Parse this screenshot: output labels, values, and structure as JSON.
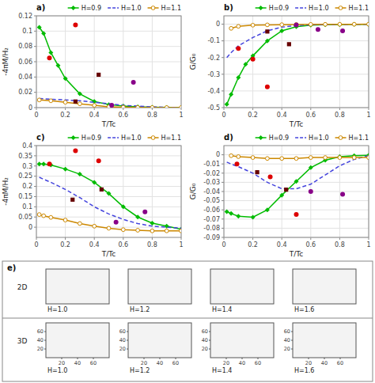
{
  "chart_data": [
    {
      "type": "line",
      "title": "a)",
      "xlabel": "T/Tc",
      "ylabel": "-4πM/H₂",
      "xlim": [
        0,
        1
      ],
      "ylim": [
        0,
        0.12
      ],
      "xticks": [
        0,
        0.2,
        0.4,
        0.6,
        0.8,
        1.0
      ],
      "yticks": [
        0,
        0.02,
        0.04,
        0.06,
        0.08,
        0.1,
        0.12
      ],
      "grid": true,
      "legend": "upper right",
      "series": [
        {
          "name": "H=0.9",
          "type": "line",
          "color": "#00bb00",
          "line_style": "solid",
          "marker": "diamond",
          "x": [
            0.02,
            0.05,
            0.1,
            0.15,
            0.2,
            0.3,
            0.4,
            0.5,
            0.6,
            0.7,
            0.8,
            0.9,
            1.0
          ],
          "values": [
            0.105,
            0.097,
            0.072,
            0.055,
            0.038,
            0.018,
            0.008,
            0.004,
            0.002,
            0.001,
            0.0005,
            0.0002,
            0.0001
          ]
        },
        {
          "name": "H=1.0",
          "type": "line",
          "color": "#4444dd",
          "line_style": "dashed",
          "marker": "none",
          "x": [
            0.02,
            0.1,
            0.2,
            0.3,
            0.4,
            0.5,
            0.6,
            0.7,
            0.8,
            0.9,
            1.0
          ],
          "values": [
            0.012,
            0.011,
            0.01,
            0.009,
            0.007,
            0.005,
            0.003,
            0.002,
            0.001,
            0.0005,
            0.0001
          ]
        },
        {
          "name": "H=1.1",
          "type": "line",
          "color": "#cc8800",
          "line_style": "solid",
          "marker": "circle_open",
          "x": [
            0.02,
            0.1,
            0.2,
            0.3,
            0.4,
            0.5,
            0.6,
            0.7,
            0.8,
            0.9,
            1.0
          ],
          "values": [
            0.01,
            0.009,
            0.007,
            0.005,
            0.003,
            0.001,
            0.0005,
            0.0002,
            0.0001,
            5e-05,
            1e-05
          ]
        },
        {
          "type": "scatter",
          "color": "#dd0000",
          "marker": "circle",
          "x": [
            0.09,
            0.27
          ],
          "values": [
            0.065,
            0.108
          ]
        },
        {
          "type": "scatter",
          "color": "#660000",
          "marker": "square",
          "x": [
            0.27,
            0.43
          ],
          "values": [
            0.008,
            0.043
          ]
        },
        {
          "type": "scatter",
          "color": "#880088",
          "marker": "circle",
          "x": [
            0.52,
            0.67
          ],
          "values": [
            0.003,
            0.033
          ]
        }
      ]
    },
    {
      "type": "line",
      "title": "b)",
      "xlabel": "T/Tc",
      "ylabel": "G/G₀",
      "xlim": [
        0,
        1
      ],
      "ylim": [
        -0.5,
        0.05
      ],
      "xticks": [
        0,
        0.2,
        0.4,
        0.6,
        0.8,
        1.0
      ],
      "yticks": [
        -0.5,
        -0.4,
        -0.3,
        -0.2,
        -0.1,
        0.0
      ],
      "grid": true,
      "legend": "upper right",
      "series": [
        {
          "name": "H=0.9",
          "type": "line",
          "color": "#00bb00",
          "line_style": "solid",
          "marker": "diamond",
          "x": [
            0.02,
            0.05,
            0.1,
            0.15,
            0.2,
            0.3,
            0.4,
            0.5,
            0.6,
            0.7,
            0.8,
            0.9,
            1.0
          ],
          "values": [
            -0.48,
            -0.42,
            -0.32,
            -0.24,
            -0.19,
            -0.1,
            -0.04,
            -0.015,
            -0.006,
            -0.003,
            -0.002,
            -0.001,
            -0.0005
          ]
        },
        {
          "name": "H=1.0",
          "type": "line",
          "color": "#4444dd",
          "line_style": "dashed",
          "marker": "none",
          "x": [
            0.02,
            0.05,
            0.1,
            0.2,
            0.3,
            0.4,
            0.5,
            0.6,
            0.7,
            0.8,
            0.9,
            1.0
          ],
          "values": [
            -0.2,
            -0.17,
            -0.13,
            -0.08,
            -0.04,
            -0.018,
            -0.008,
            -0.004,
            -0.003,
            -0.002,
            -0.001,
            -0.0005
          ]
        },
        {
          "name": "H=1.1",
          "type": "line",
          "color": "#cc8800",
          "line_style": "solid",
          "marker": "circle_open",
          "x": [
            0.05,
            0.1,
            0.2,
            0.3,
            0.4,
            0.5,
            0.6,
            0.7,
            0.8,
            0.9,
            1.0
          ],
          "values": [
            -0.025,
            -0.013,
            -0.006,
            -0.004,
            -0.003,
            -0.002,
            -0.0015,
            -0.001,
            -0.0008,
            -0.0005,
            -0.0003
          ]
        },
        {
          "type": "scatter",
          "color": "#dd0000",
          "marker": "circle",
          "x": [
            0.1,
            0.2,
            0.3
          ],
          "values": [
            -0.145,
            -0.21,
            -0.375
          ]
        },
        {
          "type": "scatter",
          "color": "#660000",
          "marker": "square",
          "x": [
            0.3,
            0.45
          ],
          "values": [
            -0.044,
            -0.12
          ]
        },
        {
          "type": "scatter",
          "color": "#880088",
          "marker": "circle",
          "x": [
            0.5,
            0.65,
            0.82
          ],
          "values": [
            -0.005,
            -0.032,
            -0.04
          ]
        }
      ]
    },
    {
      "type": "line",
      "title": "c)",
      "xlabel": "T/Tc",
      "ylabel": "-4πM/H₂",
      "xlim": [
        0,
        1
      ],
      "ylim": [
        -0.05,
        0.4
      ],
      "xticks": [
        0,
        0.2,
        0.4,
        0.6,
        0.8,
        1.0
      ],
      "yticks": [
        0.0,
        0.05,
        0.1,
        0.15,
        0.2,
        0.25,
        0.3,
        0.35,
        0.4
      ],
      "grid": true,
      "legend": "upper right",
      "series": [
        {
          "name": "H=0.9",
          "type": "line",
          "color": "#00bb00",
          "line_style": "solid",
          "marker": "diamond",
          "x": [
            0.02,
            0.05,
            0.1,
            0.2,
            0.3,
            0.4,
            0.5,
            0.6,
            0.7,
            0.8,
            0.9,
            1.0
          ],
          "values": [
            0.31,
            0.31,
            0.305,
            0.285,
            0.26,
            0.22,
            0.165,
            0.1,
            0.05,
            0.02,
            0.005,
            -0.01
          ]
        },
        {
          "name": "H=1.0",
          "type": "line",
          "color": "#4444dd",
          "line_style": "dashed",
          "marker": "none",
          "x": [
            0.02,
            0.05,
            0.1,
            0.2,
            0.3,
            0.4,
            0.5,
            0.6,
            0.7,
            0.8,
            0.9,
            1.0
          ],
          "values": [
            0.245,
            0.235,
            0.22,
            0.185,
            0.145,
            0.1,
            0.065,
            0.038,
            0.018,
            0.005,
            0.0,
            -0.005
          ]
        },
        {
          "name": "H=1.1",
          "type": "line",
          "color": "#cc8800",
          "line_style": "solid",
          "marker": "circle_open",
          "x": [
            0.02,
            0.05,
            0.1,
            0.2,
            0.3,
            0.4,
            0.5,
            0.6,
            0.7,
            0.8,
            0.9,
            1.0
          ],
          "values": [
            0.062,
            0.056,
            0.048,
            0.035,
            0.018,
            0.005,
            -0.005,
            -0.012,
            -0.015,
            -0.018,
            -0.018,
            -0.018
          ]
        },
        {
          "type": "scatter",
          "color": "#dd0000",
          "marker": "circle",
          "x": [
            0.09,
            0.27,
            0.43
          ],
          "values": [
            0.31,
            0.375,
            0.325
          ]
        },
        {
          "type": "scatter",
          "color": "#660000",
          "marker": "square",
          "x": [
            0.25,
            0.45
          ],
          "values": [
            0.135,
            0.185
          ]
        },
        {
          "type": "scatter",
          "color": "#880088",
          "marker": "circle",
          "x": [
            0.55,
            0.75
          ],
          "values": [
            0.025,
            0.075
          ]
        }
      ]
    },
    {
      "type": "line",
      "title": "d)",
      "xlabel": "T/Tc",
      "ylabel": "G/G₀",
      "xlim": [
        0,
        1
      ],
      "ylim": [
        -0.09,
        0.01
      ],
      "xticks": [
        0,
        0.2,
        0.4,
        0.6,
        0.8,
        1.0
      ],
      "yticks": [
        -0.09,
        -0.08,
        -0.07,
        -0.06,
        -0.05,
        -0.04,
        -0.03,
        -0.02,
        -0.01,
        0.0
      ],
      "grid": true,
      "legend": "upper right",
      "series": [
        {
          "name": "H=0.9",
          "type": "line",
          "color": "#00bb00",
          "line_style": "solid",
          "marker": "diamond",
          "x": [
            0.02,
            0.05,
            0.1,
            0.2,
            0.3,
            0.4,
            0.5,
            0.6,
            0.7,
            0.8,
            0.9,
            1.0
          ],
          "values": [
            -0.062,
            -0.064,
            -0.067,
            -0.068,
            -0.06,
            -0.044,
            -0.029,
            -0.014,
            -0.006,
            -0.002,
            -0.001,
            -0.0005
          ]
        },
        {
          "name": "H=1.0",
          "type": "line",
          "color": "#4444dd",
          "line_style": "dashed",
          "marker": "none",
          "x": [
            0.02,
            0.05,
            0.1,
            0.2,
            0.3,
            0.4,
            0.5,
            0.6,
            0.7,
            0.8,
            0.9,
            1.0
          ],
          "values": [
            -0.008,
            -0.01,
            -0.013,
            -0.02,
            -0.03,
            -0.037,
            -0.037,
            -0.032,
            -0.022,
            -0.012,
            -0.005,
            -0.001
          ]
        },
        {
          "name": "H=1.1",
          "type": "line",
          "color": "#cc8800",
          "line_style": "solid",
          "marker": "circle_open",
          "x": [
            0.05,
            0.1,
            0.2,
            0.3,
            0.4,
            0.5,
            0.6,
            0.7,
            0.8,
            0.9,
            1.0
          ],
          "values": [
            -0.001,
            -0.002,
            -0.003,
            -0.004,
            -0.004,
            -0.004,
            -0.003,
            -0.003,
            -0.003,
            -0.003,
            -0.003
          ]
        },
        {
          "type": "scatter",
          "color": "#dd0000",
          "marker": "circle",
          "x": [
            0.09,
            0.32,
            0.5
          ],
          "values": [
            -0.01,
            -0.024,
            -0.065
          ]
        },
        {
          "type": "scatter",
          "color": "#660000",
          "marker": "square",
          "x": [
            0.23,
            0.43
          ],
          "values": [
            -0.019,
            -0.038
          ]
        },
        {
          "type": "scatter",
          "color": "#880088",
          "marker": "circle",
          "x": [
            0.6,
            0.82
          ],
          "values": [
            -0.04,
            -0.043
          ]
        }
      ]
    },
    {
      "type": "image_grid",
      "title": "e)",
      "rows": [
        "2D",
        "3D"
      ],
      "columns": [
        "H=1.0",
        "H=1.2",
        "H=1.4",
        "H=1.6"
      ],
      "xlim": [
        0,
        80
      ],
      "ylim": [
        0,
        80
      ],
      "xticks": [
        20,
        40,
        60
      ],
      "yticks": [
        20,
        40,
        60
      ],
      "tick_labels": "3D"
    }
  ]
}
